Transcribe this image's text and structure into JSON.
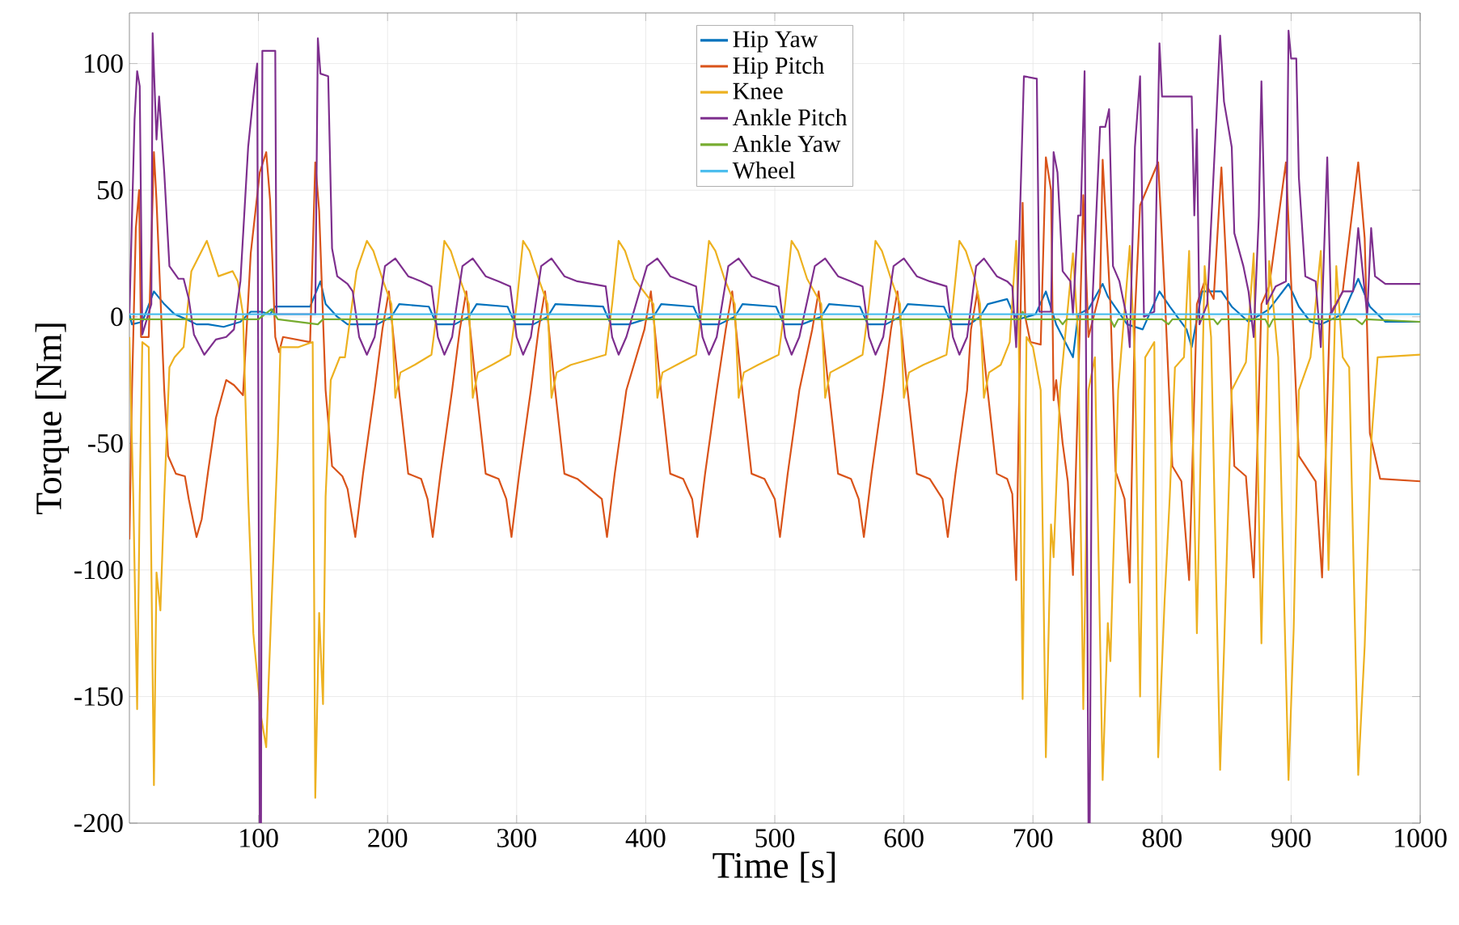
{
  "chart_data": {
    "type": "line",
    "xlabel": "Time [s]",
    "ylabel": "Torque [Nm]",
    "xlim": [
      0,
      1000
    ],
    "ylim": [
      -200,
      120
    ],
    "xticks": [
      100,
      200,
      300,
      400,
      500,
      600,
      700,
      800,
      900,
      1000
    ],
    "yticks": [
      -200,
      -150,
      -100,
      -50,
      0,
      50,
      100
    ],
    "grid": true,
    "legend": "top",
    "series": [
      {
        "name": "Hip Yaw",
        "color": "#0072bd",
        "x": [
          0,
          2,
          10,
          19,
          27,
          35,
          44,
          52,
          61,
          73,
          86,
          94,
          102,
          109,
          113,
          140,
          148,
          152,
          161,
          169,
          178,
          192,
          203,
          209,
          232,
          238,
          252,
          263,
          269,
          293,
          299,
          313,
          324,
          330,
          367,
          373,
          387,
          406,
          412,
          437,
          443,
          457,
          469,
          475,
          501,
          507,
          521,
          536,
          542,
          566,
          572,
          586,
          597,
          603,
          631,
          637,
          651,
          659,
          665,
          680,
          685,
          689,
          702,
          710,
          718,
          731,
          735,
          743,
          754,
          758,
          773,
          785,
          798,
          806,
          819,
          823,
          831,
          846,
          854,
          867,
          883,
          898,
          906,
          915,
          923,
          940,
          952,
          961,
          973,
          1000
        ],
        "values": [
          1,
          -3,
          -2,
          10,
          5,
          1,
          -1,
          -3,
          -3,
          -4,
          -2,
          2,
          2,
          1,
          4,
          4,
          14,
          5,
          0,
          -3,
          -3,
          -3,
          0,
          5,
          4,
          -3,
          -3,
          0,
          5,
          4,
          -3,
          -3,
          0,
          5,
          4,
          -3,
          -3,
          0,
          5,
          4,
          -3,
          -3,
          0,
          5,
          4,
          -3,
          -3,
          0,
          5,
          4,
          -3,
          -3,
          0,
          5,
          4,
          -3,
          -3,
          0,
          5,
          7,
          1,
          -1,
          1,
          10,
          -3,
          -16,
          1,
          3,
          13,
          8,
          -3,
          -5,
          10,
          4,
          -5,
          -12,
          10,
          10,
          4,
          -2,
          3,
          13,
          4,
          -2,
          -3,
          1,
          15,
          4,
          -2,
          -2
        ]
      },
      {
        "name": "Hip Pitch",
        "color": "#d95319",
        "x": [
          0,
          2,
          5,
          7.5,
          9,
          15,
          19,
          21,
          27,
          30,
          36,
          43,
          46,
          52,
          56,
          61,
          67,
          75,
          81,
          88,
          94,
          101,
          106,
          109,
          113,
          116,
          119,
          140,
          144,
          147,
          152,
          157,
          165,
          169,
          175,
          181,
          190,
          196,
          201,
          208,
          216,
          226,
          231,
          235,
          241,
          250,
          256,
          261,
          268,
          276,
          286,
          292,
          296,
          302,
          311,
          317,
          322,
          329,
          337,
          347,
          366,
          370,
          376,
          385,
          399,
          404,
          411,
          419,
          429,
          436,
          440,
          446,
          455,
          462,
          467,
          474,
          482,
          492,
          500,
          504,
          510,
          519,
          529,
          534,
          541,
          549,
          559,
          565,
          569,
          575,
          584,
          590,
          595,
          602,
          610,
          620,
          630,
          634,
          640,
          649,
          652,
          657,
          664,
          672,
          680,
          684,
          687,
          690,
          692,
          694,
          698,
          706,
          710,
          714,
          716,
          718,
          723,
          727,
          731,
          735,
          739,
          743,
          752,
          754,
          760,
          764,
          771,
          775,
          779,
          783,
          797,
          802,
          808,
          815,
          821,
          827,
          833,
          840,
          846,
          850,
          856,
          865,
          871,
          877,
          883,
          896,
          900,
          906,
          919,
          924,
          930,
          940,
          952,
          957,
          961,
          969,
          1000
        ],
        "values": [
          -88,
          -29,
          35,
          50,
          -8,
          -8,
          65,
          46,
          -29,
          -55,
          -62,
          -63,
          -72,
          -87,
          -80,
          -61,
          -40,
          -25,
          -27,
          -31,
          25,
          57,
          65,
          46,
          -8,
          -14,
          -8,
          -10,
          61,
          42,
          -29,
          -59,
          -63,
          -68,
          -87,
          -62,
          -29,
          -5,
          10,
          -25,
          -62,
          -64,
          -72,
          -87,
          -62,
          -29,
          -5,
          10,
          -25,
          -62,
          -64,
          -72,
          -87,
          -62,
          -29,
          -5,
          10,
          -25,
          -62,
          -64,
          -72,
          -87,
          -62,
          -29,
          -5,
          10,
          -25,
          -62,
          -64,
          -72,
          -87,
          -62,
          -29,
          -5,
          10,
          -25,
          -62,
          -64,
          -72,
          -87,
          -62,
          -29,
          -5,
          10,
          -25,
          -62,
          -64,
          -72,
          -87,
          -62,
          -29,
          -5,
          10,
          -25,
          -62,
          -64,
          -72,
          -87,
          -62,
          -29,
          -5,
          10,
          -25,
          -62,
          -64,
          -70,
          -104,
          -10,
          45,
          0,
          -10,
          -11,
          63,
          50,
          -33,
          -25,
          -50,
          -65,
          -102,
          -29,
          48,
          -8,
          10,
          62,
          5,
          -61,
          -72,
          -105,
          1,
          44,
          61,
          10,
          -59,
          -65,
          -104,
          5,
          14,
          7,
          59,
          18,
          -59,
          -63,
          -103,
          5,
          12,
          61,
          14,
          -55,
          -65,
          -103,
          1,
          10,
          61,
          31,
          -46,
          -64,
          -65
        ]
      },
      {
        "name": "Knee",
        "color": "#edb120",
        "x": [
          0,
          3,
          6,
          8,
          10,
          15,
          19,
          21,
          24,
          27,
          31,
          35,
          42,
          48,
          60,
          69,
          80,
          84,
          88,
          92,
          96,
          102,
          106,
          110,
          115,
          117,
          131,
          142,
          144,
          147,
          150,
          152,
          156,
          163,
          167,
          176,
          184,
          189,
          196,
          203,
          206,
          210,
          221,
          234,
          239,
          244,
          249,
          256,
          263,
          266,
          270,
          281,
          295,
          300,
          305,
          310,
          317,
          324,
          327,
          331,
          342,
          369,
          374,
          379,
          384,
          391,
          406,
          409,
          413,
          424,
          439,
          444,
          449,
          454,
          461,
          469,
          472,
          476,
          487,
          503,
          508,
          513,
          518,
          525,
          536,
          539,
          543,
          554,
          568,
          573,
          578,
          583,
          590,
          597,
          600,
          604,
          615,
          633,
          638,
          643,
          648,
          655,
          659,
          662,
          666,
          675,
          682,
          687,
          689,
          692,
          695,
          700,
          706,
          710,
          714,
          716,
          721,
          731,
          735,
          739,
          743,
          748,
          754,
          758,
          760,
          766,
          775,
          779,
          783,
          787,
          794,
          797,
          802,
          806,
          810,
          817,
          821,
          827,
          833,
          838,
          845,
          848,
          854,
          865,
          871,
          877,
          883,
          890,
          898,
          902,
          906,
          915,
          923,
          929,
          935,
          940,
          945,
          952,
          957,
          962,
          967,
          1000
        ],
        "values": [
          -8,
          -71,
          -155,
          -71,
          -10,
          -12,
          -185,
          -101,
          -116,
          -71,
          -20,
          -16,
          -12,
          18,
          30,
          16,
          18,
          14,
          1,
          -71,
          -125,
          -158,
          -170,
          -115,
          -50,
          -12,
          -12,
          -10,
          -190,
          -117,
          -153,
          -71,
          -25,
          -16,
          -16,
          18,
          30,
          26,
          15,
          5,
          -32,
          -22,
          -19,
          -15,
          5,
          30,
          26,
          15,
          5,
          -32,
          -22,
          -19,
          -15,
          5,
          30,
          26,
          15,
          5,
          -32,
          -22,
          -19,
          -15,
          5,
          30,
          26,
          15,
          5,
          -32,
          -22,
          -19,
          -15,
          5,
          30,
          26,
          15,
          5,
          -32,
          -22,
          -19,
          -15,
          5,
          30,
          26,
          15,
          5,
          -32,
          -22,
          -19,
          -15,
          5,
          30,
          26,
          15,
          5,
          -32,
          -22,
          -19,
          -15,
          5,
          30,
          26,
          15,
          5,
          -32,
          -22,
          -19,
          -10,
          30,
          -8,
          -151,
          -8,
          -12,
          -29,
          -174,
          -82,
          -95,
          -29,
          25,
          -8,
          -155,
          -29,
          -16,
          -183,
          -121,
          -136,
          -29,
          28,
          -18,
          -150,
          -16,
          -10,
          -174,
          -112,
          -71,
          -20,
          -16,
          26,
          -125,
          20,
          -8,
          -179,
          -132,
          -29,
          -18,
          25,
          -129,
          22,
          -16,
          -183,
          -123,
          -29,
          -16,
          26,
          -100,
          20,
          -16,
          -20,
          -181,
          -130,
          -50,
          -16,
          -15
        ]
      },
      {
        "name": "Ankle Pitch",
        "color": "#7e2f8e",
        "x": [
          0,
          4,
          6,
          8,
          10,
          17,
          18,
          21,
          23,
          27,
          31,
          38,
          42,
          46,
          50,
          58,
          67,
          75,
          81,
          86,
          92,
          96,
          99,
          101,
          102,
          103,
          113,
          114,
          144,
          146,
          148,
          154,
          157,
          161,
          169,
          173,
          178,
          184,
          190,
          198,
          206,
          216,
          226,
          234,
          239,
          244,
          250,
          258,
          266,
          276,
          286,
          295,
          300,
          305,
          311,
          319,
          327,
          337,
          347,
          369,
          374,
          379,
          385,
          401,
          409,
          419,
          429,
          439,
          444,
          449,
          455,
          464,
          472,
          482,
          492,
          503,
          508,
          513,
          519,
          531,
          539,
          549,
          559,
          568,
          573,
          578,
          584,
          592,
          600,
          610,
          620,
          633,
          638,
          643,
          649,
          656,
          662,
          672,
          680,
          684,
          687,
          693,
          703,
          705,
          714,
          716,
          719,
          723,
          729,
          731,
          735,
          737,
          740,
          743,
          744,
          746,
          752,
          756,
          759,
          762,
          767,
          773,
          775,
          779,
          783,
          786,
          794,
          798,
          800,
          823,
          825,
          827,
          829,
          835,
          842,
          845,
          848,
          854,
          856,
          863,
          867,
          871,
          875,
          877,
          881,
          888,
          896,
          898,
          900,
          904,
          906,
          911,
          919,
          923,
          928,
          931,
          940,
          948,
          952,
          957,
          959,
          962,
          965,
          973,
          1000
        ],
        "values": [
          1,
          78,
          97,
          91,
          -7,
          5,
          112,
          70,
          87,
          57,
          20,
          15,
          15,
          7,
          -7,
          -15,
          -9,
          -8,
          -5,
          14,
          67,
          87,
          100,
          -200,
          -200,
          105,
          105,
          1,
          1,
          110,
          96,
          95,
          27,
          16,
          13,
          10,
          -8,
          -15,
          -8,
          20,
          23,
          16,
          14,
          12,
          -8,
          -15,
          -8,
          20,
          23,
          16,
          14,
          12,
          -8,
          -15,
          -8,
          20,
          23,
          16,
          14,
          12,
          -8,
          -15,
          -8,
          20,
          23,
          16,
          14,
          12,
          -8,
          -15,
          -8,
          20,
          23,
          16,
          14,
          12,
          -8,
          -15,
          -8,
          20,
          23,
          16,
          14,
          12,
          -8,
          -15,
          -8,
          20,
          23,
          16,
          14,
          12,
          -8,
          -15,
          -8,
          20,
          23,
          16,
          14,
          12,
          -12,
          95,
          94,
          2,
          2,
          65,
          57,
          18,
          14,
          1,
          40,
          40,
          97,
          -200,
          -200,
          5,
          75,
          75,
          82,
          20,
          14,
          -1,
          -12,
          67,
          95,
          0,
          2,
          108,
          87,
          87,
          40,
          74,
          -3,
          5,
          78,
          111,
          85,
          67,
          33,
          20,
          10,
          -8,
          40,
          93,
          5,
          12,
          14,
          113,
          102,
          102,
          55,
          16,
          14,
          -12,
          63,
          1,
          10,
          10,
          35,
          10,
          1,
          35,
          16,
          13,
          13
        ]
      },
      {
        "name": "Ankle Yaw",
        "color": "#77ac30",
        "x": [
          0,
          100,
          110,
          115,
          146,
          150,
          690,
          692,
          695,
          720,
          723,
          726,
          760,
          763,
          766,
          800,
          805,
          808,
          840,
          843,
          846,
          880,
          883,
          886,
          950,
          955,
          958,
          1000
        ],
        "values": [
          -1,
          -1,
          3,
          -1,
          -3,
          -1,
          -1,
          2,
          -1,
          -1,
          -3,
          -1,
          -1,
          -4,
          -1,
          -1,
          -3,
          -1,
          -1,
          -3,
          -1,
          -1,
          -4,
          -1,
          -1,
          -3,
          -1,
          -2
        ]
      },
      {
        "name": "Wheel",
        "color": "#4dbeee",
        "x": [
          0,
          1000
        ],
        "values": [
          1,
          1
        ]
      }
    ]
  }
}
